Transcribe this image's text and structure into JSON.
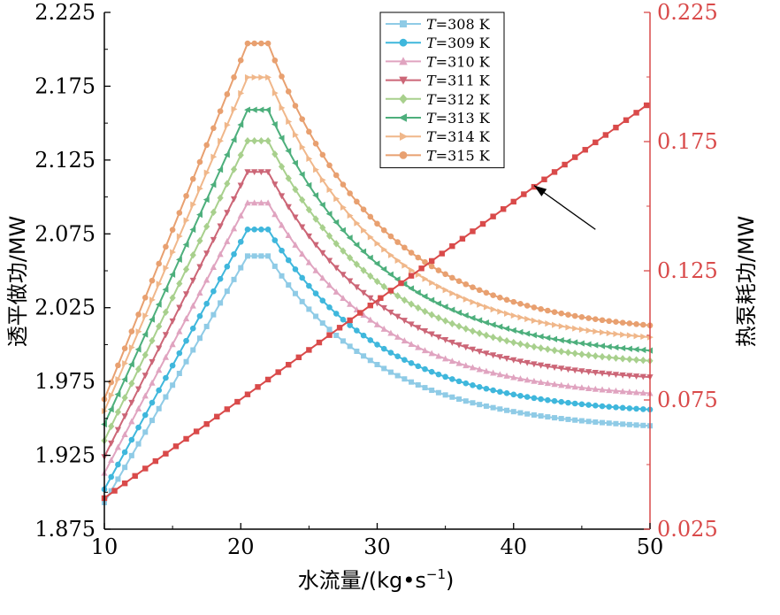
{
  "chart_data": {
    "type": "line",
    "xlabel_main": "水流量/(kg•s",
    "xlabel_sup": "−1",
    "xlabel_close": ")",
    "ylabel_left": "透平做功/MW",
    "ylabel_right": "热泵耗功/MW",
    "xlim": [
      10,
      50
    ],
    "ylim_left": [
      1.875,
      2.225
    ],
    "ylim_right": [
      0.025,
      0.225
    ],
    "x_ticks": [
      "10",
      "20",
      "30",
      "40",
      "50"
    ],
    "y_left_ticks": [
      "1.875",
      "1.925",
      "1.975",
      "2.025",
      "2.075",
      "2.125",
      "2.175",
      "2.225"
    ],
    "y_right_ticks": [
      "0.025",
      "0.075",
      "0.125",
      "0.175",
      "0.225"
    ],
    "legend_position": "top-center",
    "series": [
      {
        "name": "=308 K",
        "var": "T",
        "color": "#8fcbe6",
        "marker": "square",
        "peak": 2.06,
        "y10": 1.893,
        "y50": 1.945
      },
      {
        "name": "=309 K",
        "var": "T",
        "color": "#3fb7dc",
        "marker": "circle",
        "peak": 2.078,
        "y10": 1.902,
        "y50": 1.956
      },
      {
        "name": "=310 K",
        "var": "T",
        "color": "#e0a4c0",
        "marker": "triangle-up",
        "peak": 2.096,
        "y10": 1.913,
        "y50": 1.967
      },
      {
        "name": "=311 K",
        "var": "T",
        "color": "#cc6677",
        "marker": "triangle-down",
        "peak": 2.117,
        "y10": 1.924,
        "y50": 1.978
      },
      {
        "name": "=312 K",
        "var": "T",
        "color": "#a8d08d",
        "marker": "diamond",
        "peak": 2.138,
        "y10": 1.935,
        "y50": 1.989
      },
      {
        "name": "=313 K",
        "var": "T",
        "color": "#4daf7c",
        "marker": "triangle-left",
        "peak": 2.159,
        "y10": 1.946,
        "y50": 1.996
      },
      {
        "name": "=314 K",
        "var": "T",
        "color": "#f0b78a",
        "marker": "triangle-right",
        "peak": 2.181,
        "y10": 1.955,
        "y50": 2.005
      },
      {
        "name": "=315 K",
        "var": "T",
        "color": "#e8a070",
        "marker": "circle",
        "peak": 2.204,
        "y10": 1.963,
        "y50": 2.013
      }
    ],
    "peak_plateau": [
      20.5,
      22.0
    ],
    "right_series": {
      "color": "#d94a4a",
      "marker": "square",
      "y10": 0.037,
      "y50": 0.19
    },
    "annotation": {
      "type": "arrow",
      "from": [
        46,
        0.141
      ],
      "to": [
        41.5,
        0.158
      ]
    }
  }
}
